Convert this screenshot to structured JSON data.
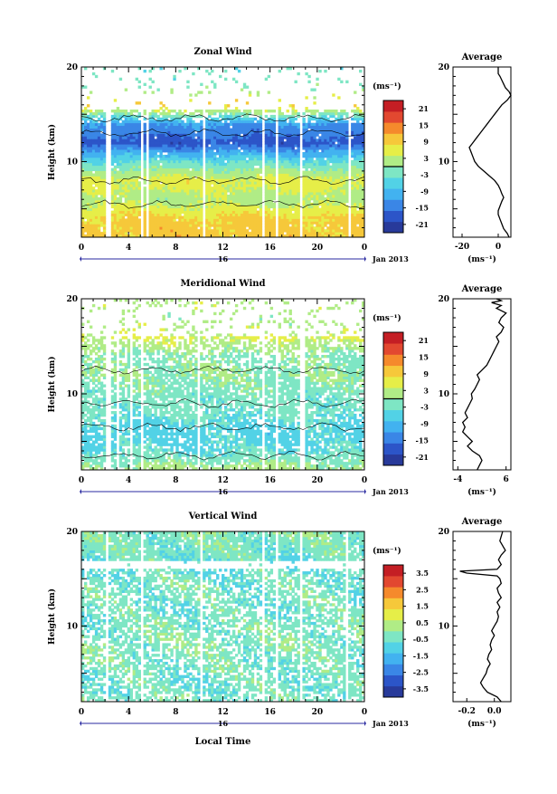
{
  "colors": {
    "colormap": [
      "#283a9a",
      "#2c55c8",
      "#3a86e6",
      "#42b2f0",
      "#52d2e6",
      "#7ee6c4",
      "#b0ec86",
      "#e6ee48",
      "#f6c83a",
      "#f58a2c",
      "#e24830",
      "#c41e24"
    ],
    "missing": "#ffffff",
    "contour": "#000000",
    "axis": "#000000"
  },
  "common": {
    "x_ticks": [
      "0",
      "4",
      "8",
      "12",
      "16",
      "20",
      "0"
    ],
    "date_day": "16",
    "date_month": "Jan 2013",
    "x_label": "Local Time",
    "y_label": "Height (km)",
    "y_ticks": [
      "10",
      "20"
    ],
    "cbar_unit": "(ms⁻¹)",
    "avg_unit": "(ms⁻¹)"
  },
  "panels": [
    {
      "title": "Zonal Wind",
      "avg_title": "Average",
      "cbar_ticks": [
        "21",
        "15",
        "9",
        "3",
        "-3",
        "-9",
        "-15",
        "-21"
      ],
      "avg_xticks": [
        "-20",
        "0"
      ]
    },
    {
      "title": "Meridional Wind",
      "avg_title": "Average",
      "cbar_ticks": [
        "21",
        "15",
        "9",
        "3",
        "-3",
        "-9",
        "-15",
        "-21"
      ],
      "avg_xticks": [
        "-4",
        "6"
      ]
    },
    {
      "title": "Vertical Wind",
      "avg_title": "Average",
      "cbar_ticks": [
        "3.5",
        "2.5",
        "1.5",
        "0.5",
        "-0.5",
        "-1.5",
        "-2.5",
        "-3.5"
      ],
      "avg_xticks": [
        "-0.2",
        "0.0"
      ]
    }
  ],
  "chart_data": [
    {
      "type": "heatmap",
      "title": "Zonal Wind",
      "xlabel": "",
      "ylabel": "Height (km)",
      "x_range_hours": [
        0,
        24
      ],
      "y_range_km": [
        2,
        20
      ],
      "colorbar": {
        "unit": "ms-1",
        "range": [
          -24,
          24
        ],
        "ticks": [
          21,
          15,
          9,
          3,
          -3,
          -9,
          -15,
          -21
        ]
      },
      "height_profile_km": [
        2,
        4,
        6,
        8,
        10,
        12,
        14,
        16,
        18,
        20
      ],
      "typical_profile_ms": [
        10,
        9,
        2,
        6,
        -4,
        -18,
        -12,
        10,
        -2,
        -3
      ],
      "data_gaps_hours": [
        [
          2.0,
          2.6
        ],
        [
          5.0,
          5.3
        ],
        [
          5.5,
          5.8
        ],
        [
          10.3,
          10.6
        ],
        [
          15.3,
          15.5
        ],
        [
          16.4,
          16.8
        ],
        [
          18.6,
          18.8
        ],
        [
          21.6,
          21.8
        ],
        [
          22.6,
          22.8
        ]
      ],
      "average_profile": {
        "title": "Average",
        "xlabel": "ms-1",
        "xlim": [
          -25,
          7
        ],
        "x": [
          6,
          5,
          3,
          2,
          1,
          0,
          0,
          1,
          2,
          3,
          2,
          1,
          0,
          -2,
          -5,
          -8,
          -11,
          -13,
          -14,
          -15,
          -16,
          -14,
          -12,
          -10,
          -8,
          -6,
          -4,
          -2,
          0,
          2,
          5,
          7,
          6,
          4,
          3,
          2,
          1,
          0,
          0,
          0,
          0
        ],
        "y": [
          2,
          2.4,
          2.9,
          3.4,
          3.9,
          4.4,
          4.8,
          5.3,
          5.8,
          6.2,
          6.6,
          7.1,
          7.5,
          8,
          8.5,
          9,
          9.5,
          10,
          10.5,
          11,
          11.5,
          12,
          12.5,
          13,
          13.5,
          14,
          14.5,
          15,
          15.5,
          16,
          16.5,
          17,
          17.4,
          17.8,
          18.2,
          18.6,
          19,
          19.3,
          19.6,
          19.8,
          20
        ]
      }
    },
    {
      "type": "heatmap",
      "title": "Meridional Wind",
      "xlabel": "",
      "ylabel": "Height (km)",
      "x_range_hours": [
        0,
        24
      ],
      "y_range_km": [
        2,
        20
      ],
      "colorbar": {
        "unit": "ms-1",
        "range": [
          -24,
          24
        ],
        "ticks": [
          21,
          15,
          9,
          3,
          -3,
          -9,
          -15,
          -21
        ]
      },
      "height_profile_km": [
        2,
        4,
        6,
        8,
        10,
        12,
        14,
        16,
        18,
        20
      ],
      "typical_profile_ms": [
        2,
        -4,
        -6,
        -3,
        -2,
        0,
        -1,
        5,
        1,
        3
      ],
      "data_gaps_hours": [
        [
          2.0,
          2.6
        ],
        [
          3.0,
          3.2
        ],
        [
          4.2,
          4.4
        ],
        [
          5.0,
          5.3
        ],
        [
          9.8,
          10.1
        ],
        [
          15.3,
          15.5
        ],
        [
          16.4,
          16.8
        ],
        [
          18.6,
          18.9
        ]
      ],
      "average_profile": {
        "title": "Average",
        "xlabel": "ms-1",
        "xlim": [
          -5,
          7
        ],
        "x": [
          0,
          0.5,
          1,
          0.5,
          -1,
          -2,
          -1,
          -2,
          -3,
          -2.5,
          -3,
          -2,
          -2.5,
          -2,
          -1.5,
          -1,
          -1.2,
          -0.5,
          0,
          0.5,
          0,
          1,
          2,
          2.5,
          3,
          3.5,
          4,
          4.5,
          4,
          5,
          5.5,
          4.5,
          5,
          6,
          4,
          5,
          3,
          5,
          4
        ],
        "y": [
          2,
          2.5,
          3,
          3.5,
          4,
          4.5,
          5,
          5.5,
          6,
          6.5,
          7,
          7.5,
          8,
          8.5,
          9,
          9.5,
          10,
          10.5,
          11,
          11.5,
          12,
          12.5,
          13,
          13.5,
          14,
          14.5,
          15,
          15.5,
          16,
          16.5,
          17,
          17.5,
          18,
          18.5,
          19,
          19.3,
          19.6,
          19.8,
          20
        ]
      }
    },
    {
      "type": "heatmap",
      "title": "Vertical Wind",
      "xlabel": "Local Time",
      "ylabel": "Height (km)",
      "x_range_hours": [
        0,
        24
      ],
      "y_range_km": [
        2,
        20
      ],
      "colorbar": {
        "unit": "ms-1",
        "range": [
          -4,
          4
        ],
        "ticks": [
          3.5,
          2.5,
          1.5,
          0.5,
          -0.5,
          -1.5,
          -2.5,
          -3.5
        ]
      },
      "height_profile_km": [
        2,
        4,
        6,
        8,
        10,
        12,
        14,
        16,
        18,
        20
      ],
      "typical_profile_ms": [
        -0.3,
        -0.5,
        -0.4,
        -0.2,
        -0.3,
        -0.5,
        -0.3,
        -0.6,
        -0.4,
        -0.2
      ],
      "data_gaps_hours": [
        [
          2.0,
          2.4
        ],
        [
          5.0,
          5.3
        ],
        [
          10.0,
          10.4
        ],
        [
          15.4,
          15.6
        ],
        [
          16.4,
          16.8
        ],
        [
          18.6,
          18.8
        ],
        [
          22.4,
          22.6
        ]
      ],
      "average_profile": {
        "title": "Average",
        "xlabel": "ms-1",
        "xlim": [
          -0.3,
          0.12
        ],
        "x": [
          0.05,
          0.02,
          -0.05,
          -0.08,
          -0.1,
          -0.08,
          -0.06,
          -0.05,
          -0.03,
          -0.05,
          -0.04,
          -0.02,
          -0.03,
          -0.02,
          0,
          -0.02,
          0,
          0.02,
          0.03,
          0.02,
          0.04,
          0.02,
          0.05,
          0.03,
          0.02,
          0.05,
          0.04,
          0.02,
          -0.2,
          -0.25,
          0.02,
          0.05,
          0.03,
          0.05,
          0.08,
          0.04,
          0.06
        ],
        "y": [
          2,
          2.5,
          3,
          3.5,
          4,
          4.5,
          5,
          5.5,
          6,
          6.5,
          7,
          7.5,
          8,
          8.5,
          9,
          9.5,
          10,
          10.5,
          11,
          11.5,
          12,
          12.5,
          13,
          13.5,
          14,
          14.5,
          15,
          15.3,
          15.6,
          15.8,
          16,
          16.5,
          17,
          17.5,
          18,
          19,
          20
        ]
      }
    }
  ]
}
